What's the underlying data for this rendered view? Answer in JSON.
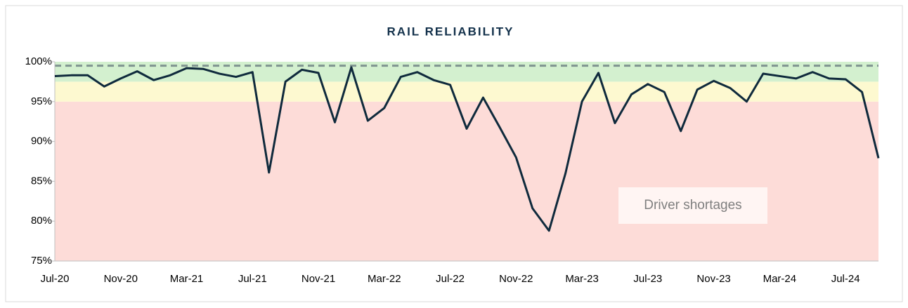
{
  "chart_data": {
    "type": "line",
    "title": "RAIL RELIABILITY",
    "categories": [
      "Jul-20",
      null,
      null,
      null,
      "Nov-20",
      null,
      null,
      null,
      "Mar-21",
      null,
      null,
      null,
      "Jul-21",
      null,
      null,
      null,
      "Nov-21",
      null,
      null,
      null,
      "Mar-22",
      null,
      null,
      null,
      "Jul-22",
      null,
      null,
      null,
      "Nov-22",
      null,
      null,
      null,
      "Mar-23",
      null,
      null,
      null,
      "Jul-23",
      null,
      null,
      null,
      "Nov-23",
      null,
      null,
      null,
      "Mar-24",
      null,
      null,
      null,
      "Jul-24",
      null,
      null
    ],
    "series": [
      {
        "color": "#0f2a3c",
        "values": [
          98.2,
          98.3,
          98.3,
          96.9,
          97.9,
          98.8,
          97.7,
          98.3,
          99.2,
          99.1,
          98.5,
          98.1,
          98.7,
          86.1,
          97.5,
          99.0,
          98.6,
          92.4,
          99.3,
          92.6,
          94.2,
          98.1,
          98.7,
          97.7,
          97.1,
          91.6,
          95.5,
          91.8,
          88.0,
          81.6,
          78.8,
          86.0,
          95.0,
          98.6,
          92.3,
          95.9,
          97.2,
          96.2,
          91.3,
          96.5,
          97.6,
          96.7,
          95.0,
          98.5,
          98.2,
          97.9,
          98.7,
          97.9,
          97.8,
          96.2,
          87.9
        ]
      }
    ],
    "ylim": [
      75,
      100
    ],
    "yticks": [
      {
        "value": 75,
        "label": "75%"
      },
      {
        "value": 80,
        "label": "80%"
      },
      {
        "value": 85,
        "label": "85%"
      },
      {
        "value": 90,
        "label": "90%"
      },
      {
        "value": 95,
        "label": "95%"
      },
      {
        "value": 100,
        "label": "100%"
      }
    ],
    "bands": [
      {
        "from": 75,
        "to": 95,
        "color": "#fddcd8"
      },
      {
        "from": 95,
        "to": 97.5,
        "color": "#fdf9d0"
      },
      {
        "from": 97.5,
        "to": 100,
        "color": "#d3f0cf"
      }
    ],
    "target": {
      "value": 99.5,
      "color": "#7f9490"
    },
    "annotation": "Driver shortages"
  }
}
